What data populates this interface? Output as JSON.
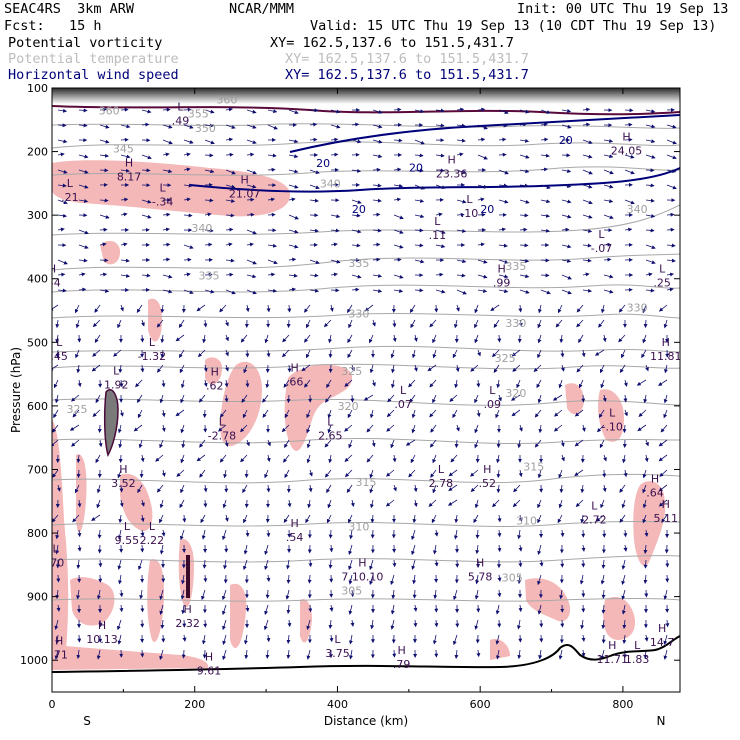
{
  "header": {
    "model": "SEAC4RS  3km ARW",
    "institution": "NCAR/MMM",
    "init": "Init: 00 UTC Thu 19 Sep 13",
    "fcst": "Fcst:   15 h",
    "valid": "Valid: 15 UTC Thu 19 Sep 13 (10 CDT Thu 19 Sep 13)"
  },
  "fields": [
    {
      "name": "Potential vorticity",
      "xy": "XY= 162.5,137.6 to 151.5,431.7",
      "color": "#000000"
    },
    {
      "name": "Potential temperature",
      "xy": "XY= 162.5,137.6 to 151.5,431.7",
      "color": "#bdbdbd"
    },
    {
      "name": "Horizontal wind speed",
      "xy": "XY= 162.5,137.6 to 151.5,431.7",
      "color": "#00007a"
    }
  ],
  "chart_data": {
    "type": "cross-section",
    "xlabel": "Distance (km)",
    "ylabel": "Pressure (hPa)",
    "xlim": [
      0,
      880
    ],
    "ylim": [
      1050,
      100
    ],
    "xticks": [
      0,
      200,
      400,
      600,
      800
    ],
    "yticks": [
      100,
      200,
      300,
      400,
      500,
      600,
      700,
      800,
      900,
      1000
    ],
    "endpoints": {
      "left": "S",
      "right": "N"
    },
    "theta_labels": [
      {
        "text": "360",
        "x": 245,
        "p": 118
      },
      {
        "text": "360",
        "x": 80,
        "p": 135
      },
      {
        "text": "355",
        "x": 205,
        "p": 140
      },
      {
        "text": "350",
        "x": 215,
        "p": 163
      },
      {
        "text": "345",
        "x": 100,
        "p": 195
      },
      {
        "text": "340",
        "x": 390,
        "p": 250
      },
      {
        "text": "340",
        "x": 820,
        "p": 290
      },
      {
        "text": "340",
        "x": 210,
        "p": 320
      },
      {
        "text": "335",
        "x": 220,
        "p": 395
      },
      {
        "text": "335",
        "x": 430,
        "p": 375
      },
      {
        "text": "335",
        "x": 650,
        "p": 380
      },
      {
        "text": "330",
        "x": 430,
        "p": 455
      },
      {
        "text": "330",
        "x": 650,
        "p": 470
      },
      {
        "text": "330",
        "x": 820,
        "p": 445
      },
      {
        "text": "325",
        "x": 35,
        "p": 605
      },
      {
        "text": "325",
        "x": 635,
        "p": 525
      },
      {
        "text": "325",
        "x": 420,
        "p": 545
      },
      {
        "text": "320",
        "x": 415,
        "p": 600
      },
      {
        "text": "320",
        "x": 650,
        "p": 580
      },
      {
        "text": "315",
        "x": 440,
        "p": 720
      },
      {
        "text": "315",
        "x": 675,
        "p": 695
      },
      {
        "text": "310",
        "x": 430,
        "p": 790
      },
      {
        "text": "310",
        "x": 665,
        "p": 780
      },
      {
        "text": "305",
        "x": 420,
        "p": 890
      },
      {
        "text": "305",
        "x": 645,
        "p": 870
      },
      {
        "text": "300.0",
        "x": 85,
        "p": 1060
      },
      {
        "text": "299.1",
        "x": 270,
        "p": 1058
      },
      {
        "text": "298.7",
        "x": 420,
        "p": 1062
      }
    ],
    "wind_labels": [
      {
        "text": "20",
        "x": 380,
        "p": 218
      },
      {
        "text": "20",
        "x": 510,
        "p": 225
      },
      {
        "text": "20",
        "x": 430,
        "p": 290
      },
      {
        "text": "20",
        "x": 610,
        "p": 290
      },
      {
        "text": "20",
        "x": 720,
        "p": 182
      }
    ],
    "extrema": [
      {
        "type": "L",
        "value": ".49",
        "x": 180,
        "p": 145
      },
      {
        "type": "H",
        "value": "8.17",
        "x": 108,
        "p": 233
      },
      {
        "type": "L",
        "value": ".21",
        "x": 25,
        "p": 265
      },
      {
        "type": "L",
        "value": "-.34",
        "x": 155,
        "p": 272
      },
      {
        "type": "H",
        "value": "21.07",
        "x": 270,
        "p": 260
      },
      {
        "type": "H",
        "value": "23.36",
        "x": 560,
        "p": 228
      },
      {
        "type": "H",
        "value": "24.05",
        "x": 805,
        "p": 192
      },
      {
        "type": "L",
        "value": ".10",
        "x": 585,
        "p": 290
      },
      {
        "type": "L",
        "value": ".11",
        "x": 540,
        "p": 325
      },
      {
        "type": "L",
        "value": "-.07",
        "x": 770,
        "p": 345
      },
      {
        "type": "H",
        "value": ".54",
        "x": 0,
        "p": 400
      },
      {
        "type": "H",
        "value": ".99",
        "x": 630,
        "p": 400
      },
      {
        "type": "L",
        "value": ".25",
        "x": 855,
        "p": 400
      },
      {
        "type": "L",
        "value": ".45",
        "x": 10,
        "p": 515
      },
      {
        "type": "L",
        "value": "-1.32",
        "x": 140,
        "p": 515
      },
      {
        "type": "L",
        "value": "1.92",
        "x": 90,
        "p": 560
      },
      {
        "type": "H",
        "value": ".62",
        "x": 228,
        "p": 562
      },
      {
        "type": "H",
        "value": ".66",
        "x": 340,
        "p": 555
      },
      {
        "type": "L",
        "value": ".07",
        "x": 492,
        "p": 591
      },
      {
        "type": "L",
        "value": ".09",
        "x": 617,
        "p": 591
      },
      {
        "type": "H",
        "value": "11.81",
        "x": 860,
        "p": 515
      },
      {
        "type": "L",
        "value": "-2.78",
        "x": 238,
        "p": 640
      },
      {
        "type": "L",
        "value": "2.65",
        "x": 390,
        "p": 640
      },
      {
        "type": "L",
        "value": "-.10",
        "x": 785,
        "p": 626
      },
      {
        "type": "H",
        "value": "3.52",
        "x": 100,
        "p": 715
      },
      {
        "type": "L",
        "value": "2.78",
        "x": 545,
        "p": 715
      },
      {
        "type": "H",
        "value": ".52",
        "x": 610,
        "p": 715
      },
      {
        "type": "H",
        "value": ".64",
        "x": 845,
        "p": 730
      },
      {
        "type": "L",
        "value": "2.72",
        "x": 760,
        "p": 772
      },
      {
        "type": "H",
        "value": "5.11",
        "x": 860,
        "p": 770
      },
      {
        "type": "L",
        "value": "9.55",
        "x": 105,
        "p": 805
      },
      {
        "type": "H",
        "value": ".54",
        "x": 340,
        "p": 800
      },
      {
        "type": "L",
        "value": "2.22",
        "x": 140,
        "p": 805
      },
      {
        "type": "L",
        "value": ".70",
        "x": 5,
        "p": 840
      },
      {
        "type": "H",
        "value": "7.10.10",
        "x": 435,
        "p": 862
      },
      {
        "type": "H",
        "value": "5.78",
        "x": 600,
        "p": 862
      },
      {
        "type": "H",
        "value": "2.32",
        "x": 190,
        "p": 935
      },
      {
        "type": "H",
        "value": "10.13",
        "x": 70,
        "p": 960
      },
      {
        "type": "H",
        "value": ".71",
        "x": 10,
        "p": 985
      },
      {
        "type": "L",
        "value": "3.75",
        "x": 400,
        "p": 982
      },
      {
        "type": "H",
        "value": ".79",
        "x": 490,
        "p": 1000
      },
      {
        "type": "H",
        "value": "11.71",
        "x": 785,
        "p": 992
      },
      {
        "type": "L",
        "value": "1.83",
        "x": 820,
        "p": 992
      },
      {
        "type": "H",
        "value": "14.7",
        "x": 855,
        "p": 965
      },
      {
        "type": "H",
        "value": "9.61",
        "x": 220,
        "p": 1010
      }
    ]
  }
}
